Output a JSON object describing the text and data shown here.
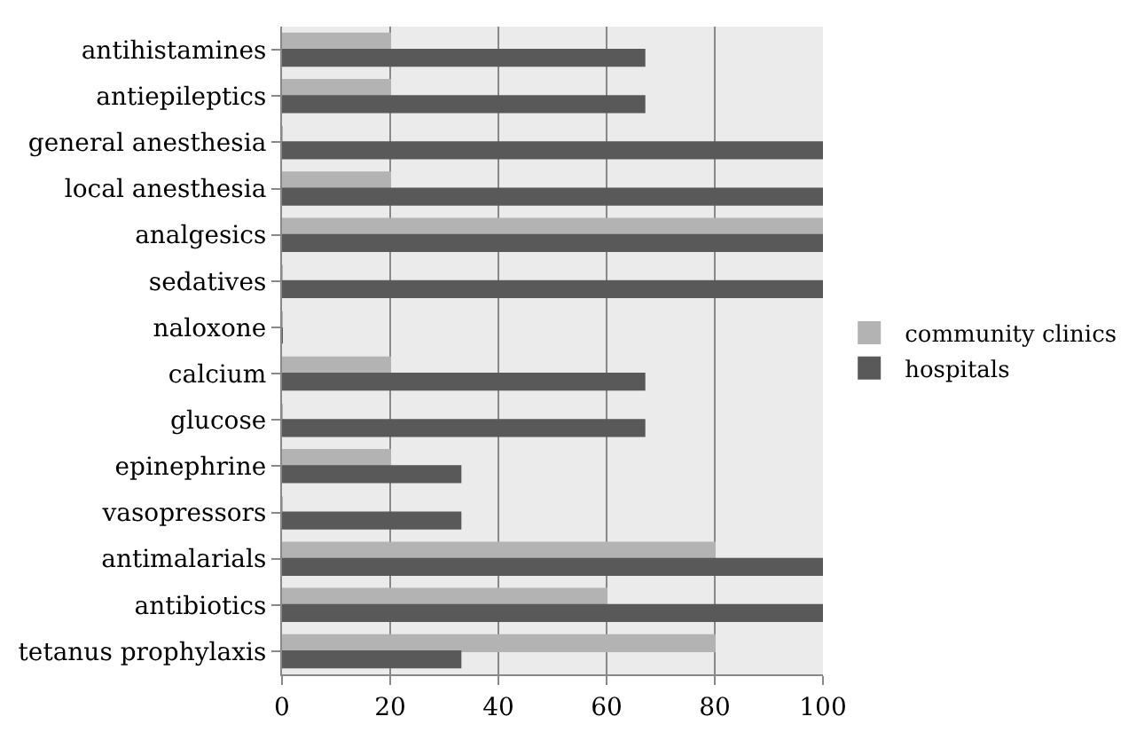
{
  "chart_data": {
    "type": "bar",
    "orientation": "horizontal",
    "categories": [
      "antihistamines",
      "antiepileptics",
      "general anesthesia",
      "local anesthesia",
      "analgesics",
      "sedatives",
      "naloxone",
      "calcium",
      "glucose",
      "epinephrine",
      "vasopressors",
      "antimalarials",
      "antibiotics",
      "tetanus prophylaxis"
    ],
    "series": [
      {
        "name": "community clinics",
        "color": "#b3b3b3",
        "values": [
          20,
          20,
          0,
          20,
          100,
          0,
          0,
          20,
          0,
          20,
          0,
          80,
          60,
          80
        ]
      },
      {
        "name": "hospitals",
        "color": "#595959",
        "values": [
          67,
          67,
          100,
          100,
          100,
          100,
          0,
          67,
          67,
          33,
          33,
          100,
          100,
          33
        ]
      }
    ],
    "xlim": [
      0,
      100
    ],
    "xticks": [
      0,
      20,
      40,
      60,
      80,
      100
    ],
    "grid": "x",
    "legend": "right"
  }
}
